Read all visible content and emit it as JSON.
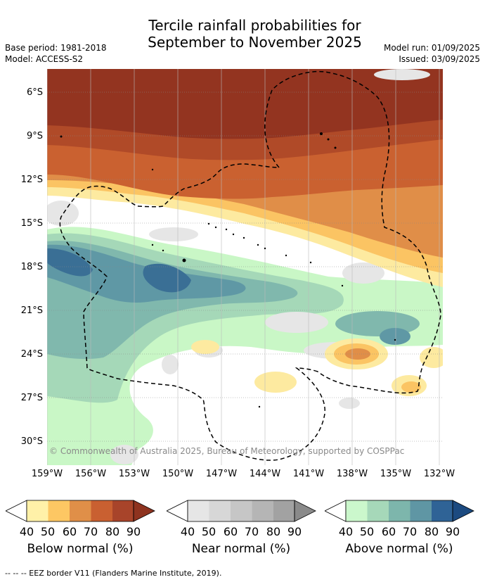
{
  "header": {
    "title_line1": "Tercile rainfall probabilities for",
    "title_line2": "September to November 2025",
    "base_period": "Base period: 1981-2018",
    "model": "Model: ACCESS-S2",
    "model_run": "Model run: 01/09/2025",
    "issued": "Issued: 03/09/2025"
  },
  "map": {
    "y_ticks": [
      "6°S",
      "9°S",
      "12°S",
      "15°S",
      "18°S",
      "21°S",
      "24°S",
      "27°S",
      "30°S"
    ],
    "x_ticks": [
      "159°W",
      "156°W",
      "153°W",
      "150°W",
      "147°W",
      "144°W",
      "141°W",
      "138°W",
      "135°W",
      "132°W"
    ],
    "copyright": "© Commonwealth of Australia 2025, Bureau of Meteorology, supported by COSPPac",
    "colors": {
      "below_90": "#933420",
      "below_80": "#b04a28",
      "below_70": "#ca6130",
      "below_60": "#e08e48",
      "below_50": "#fbc463",
      "below_40": "#fdeaa0",
      "near_40": "#e6e6e6",
      "near_50": "#d8d8d8",
      "above_40": "#c9f7c6",
      "above_50": "#a5d8b8",
      "above_60": "#80b8ad",
      "above_70": "#5f98a5",
      "above_80": "#3a6f95",
      "above_90": "#1e4f83"
    }
  },
  "legends": [
    {
      "title": "Below normal (%)",
      "ticks": [
        "40",
        "50",
        "60",
        "70",
        "80",
        "90"
      ],
      "colors": [
        "#fff1a8",
        "#fdc763",
        "#e08f48",
        "#c96031",
        "#a8442a",
        "#8e331f"
      ]
    },
    {
      "title": "Near normal (%)",
      "ticks": [
        "40",
        "50",
        "60",
        "70",
        "80",
        "90"
      ],
      "colors": [
        "#e6e6e6",
        "#d7d7d7",
        "#c6c6c6",
        "#b5b5b5",
        "#a2a2a2",
        "#8a8a8a"
      ]
    },
    {
      "title": "Above normal (%)",
      "ticks": [
        "40",
        "50",
        "60",
        "70",
        "80",
        "90"
      ],
      "colors": [
        "#cbf7cc",
        "#a6d8b9",
        "#7db6ac",
        "#5f96a4",
        "#2f6396",
        "#1c4a80"
      ]
    }
  ],
  "footnote": "--  --  -- EEZ border V11 (Flanders Marine Institute, 2019)."
}
